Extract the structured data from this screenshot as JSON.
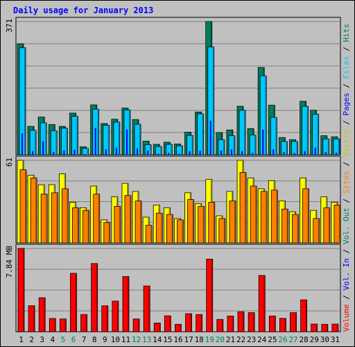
{
  "chart_data": {
    "type": "bar",
    "title": "Daily usage for January 2013",
    "categories": [
      "1",
      "2",
      "3",
      "4",
      "5",
      "6",
      "7",
      "8",
      "9",
      "10",
      "11",
      "12",
      "13",
      "14",
      "15",
      "16",
      "17",
      "18",
      "19",
      "20",
      "21",
      "22",
      "23",
      "24",
      "25",
      "26",
      "27",
      "28",
      "29",
      "30",
      "31"
    ],
    "weekend_days": [
      "5",
      "6",
      "12",
      "13",
      "19",
      "20",
      "26",
      "27"
    ],
    "panels": [
      {
        "id": "hits-files-pages",
        "max_label": "371",
        "max": 371,
        "series": [
          {
            "name": "Hits",
            "color": "#00805c",
            "values": [
              309,
              79,
              105,
              84,
              79,
              116,
              22,
              139,
              87,
              99,
              130,
              98,
              38,
              29,
              35,
              30,
              63,
              119,
              371,
              62,
              69,
              135,
              73,
              243,
              138,
              48,
              42,
              149,
              124,
              53,
              50
            ]
          },
          {
            "name": "Files",
            "color": "#00c8ff",
            "values": [
              298,
              68,
              89,
              67,
              74,
              107,
              18,
              127,
              82,
              91,
              125,
              85,
              28,
              23,
              29,
              25,
              54,
              114,
              300,
              42,
              53,
              124,
              55,
              220,
              104,
              37,
              37,
              135,
              113,
              44,
              44
            ]
          },
          {
            "name": "Pages",
            "color": "#0000ff",
            "values": [
              60,
              10,
              38,
              8,
              12,
              14,
              2,
              75,
              15,
              20,
              70,
              18,
              12,
              3,
              5,
              3,
              10,
              11,
              95,
              12,
              15,
              10,
              5,
              70,
              15,
              8,
              5,
              10,
              20,
              8,
              6
            ]
          }
        ]
      },
      {
        "id": "visits-sites",
        "max_label": "61",
        "max": 61,
        "series": [
          {
            "name": "Visits",
            "color": "#ffff00",
            "values": [
              61,
              50,
              43,
              43,
              51,
              30,
              26,
              42,
              17,
              34,
              44,
              38,
              19,
              28,
              26,
              18,
              37,
              29,
              47,
              20,
              38,
              61,
              48,
              40,
              46,
              31,
              23,
              48,
              24,
              34,
              30
            ]
          },
          {
            "name": "Sites",
            "color": "#ff8000",
            "values": [
              54,
              48,
              36,
              37,
              40,
              26,
              24,
              36,
              15,
              27,
              35,
              31,
              13,
              22,
              21,
              17,
              32,
              27,
              30,
              18,
              31,
              52,
              42,
              38,
              39,
              25,
              21,
              40,
              18,
              26,
              28
            ]
          }
        ]
      },
      {
        "id": "volume",
        "max_label": "7.84 MB",
        "max": 7.84,
        "series": [
          {
            "name": "Volume",
            "color": "#ff0000",
            "values": [
              7.84,
              2.45,
              3.2,
              1.25,
              1.2,
              5.5,
              1.62,
              6.42,
              2.44,
              2.88,
              5.2,
              1.2,
              4.31,
              0.82,
              1.5,
              0.7,
              1.7,
              1.62,
              6.84,
              1.16,
              1.48,
              1.88,
              1.8,
              5.3,
              1.48,
              1.26,
              1.8,
              3.0,
              0.72,
              0.7,
              0.72
            ]
          }
        ]
      }
    ],
    "legend": [
      "Hits",
      "/",
      "Files",
      "/",
      "Pages",
      "/",
      "Visits",
      "/",
      "Sites",
      "/",
      "Out",
      "/",
      "Vol.",
      "/",
      "In",
      "/",
      "Vol.",
      "Volume"
    ],
    "legend_right": [
      {
        "text": "Volume",
        "color": "#ff0000"
      },
      {
        "text": " / ",
        "color": "#000000"
      },
      {
        "text": "Vol. In",
        "color": "#0000ff"
      },
      {
        "text": " / ",
        "color": "#000000"
      },
      {
        "text": "Vol. Out",
        "color": "#00805c"
      },
      {
        "text": " / ",
        "color": "#000000"
      },
      {
        "text": "Sites",
        "color": "#ff8000"
      },
      {
        "text": " / ",
        "color": "#000000"
      },
      {
        "text": "Visits",
        "color": "#c8c800"
      },
      {
        "text": " / ",
        "color": "#000000"
      },
      {
        "text": "Pages",
        "color": "#0000ff"
      },
      {
        "text": " / ",
        "color": "#000000"
      },
      {
        "text": "Files",
        "color": "#00c8ff"
      },
      {
        "text": " / ",
        "color": "#000000"
      },
      {
        "text": "Hits",
        "color": "#00805c"
      }
    ],
    "colors": {
      "background": "#c0c0c0",
      "title": "#0000ff",
      "weekday_label": "#000000",
      "weekend_label": "#00805c"
    }
  }
}
